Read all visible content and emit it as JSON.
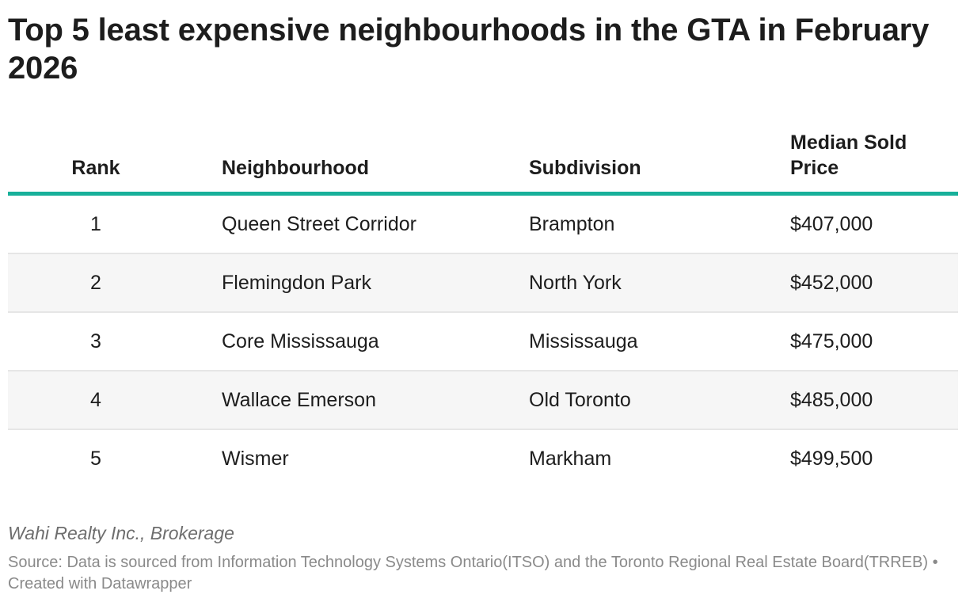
{
  "title": "Top 5 least expensive neighbourhoods in the GTA in February 2026",
  "chart_data": {
    "type": "table",
    "title": "Top 5 least expensive neighbourhoods in the GTA in February 2026",
    "columns": [
      "Rank",
      "Neighbourhood",
      "Subdivision",
      "Median Sold Price"
    ],
    "rows": [
      {
        "rank": "1",
        "neighbourhood": "Queen Street Corridor",
        "subdivision": "Brampton",
        "price": "$407,000"
      },
      {
        "rank": "2",
        "neighbourhood": "Flemingdon Park",
        "subdivision": "North York",
        "price": "$452,000"
      },
      {
        "rank": "3",
        "neighbourhood": "Core Mississauga",
        "subdivision": "Mississauga",
        "price": "$475,000"
      },
      {
        "rank": "4",
        "neighbourhood": "Wallace Emerson",
        "subdivision": "Old Toronto",
        "price": "$485,000"
      },
      {
        "rank": "5",
        "neighbourhood": "Wismer",
        "subdivision": "Markham",
        "price": "$499,500"
      }
    ],
    "header_rule_color": "#17b09a",
    "stripe_color": "#f6f6f6"
  },
  "notes": "Wahi Realty Inc., Brokerage",
  "source": "Source: Data is sourced from Information Technology Systems Ontario(ITSO) and the Toronto Regional Real Estate Board(TRREB) • Created with Datawrapper"
}
